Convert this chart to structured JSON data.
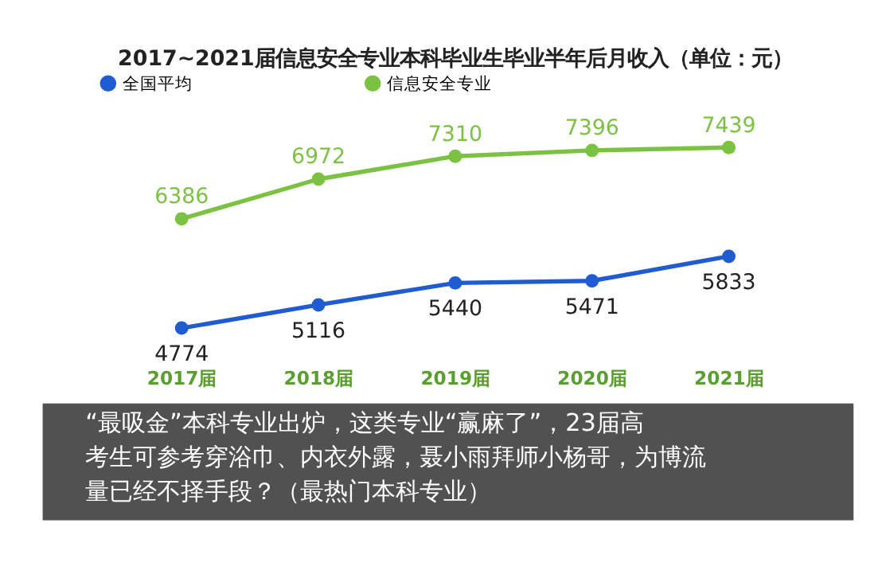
{
  "chart_data": {
    "type": "line",
    "title": "2017~2021届信息安全专业本科毕业生毕业半年后月收入（单位：元）",
    "categories": [
      "2017届",
      "2018届",
      "2019届",
      "2020届",
      "2021届"
    ],
    "series": [
      {
        "name": "全国平均",
        "color": "#1f5bd1",
        "values": [
          4774,
          5116,
          5440,
          5471,
          5833
        ]
      },
      {
        "name": "信息安全专业",
        "color": "#7cc242",
        "values": [
          6386,
          6972,
          7310,
          7396,
          7439
        ]
      }
    ],
    "data_labels": true,
    "marker": "circle",
    "legend": "top",
    "grid": false,
    "annotations": [
      "“最吸金”本科专业出炉，这类专业“赢麻了”，23届高考生可参考穿浴巾、内衣外露，聂小雨拜师小杨哥，为博流量已经不择手段？（最热门本科专业）"
    ]
  }
}
